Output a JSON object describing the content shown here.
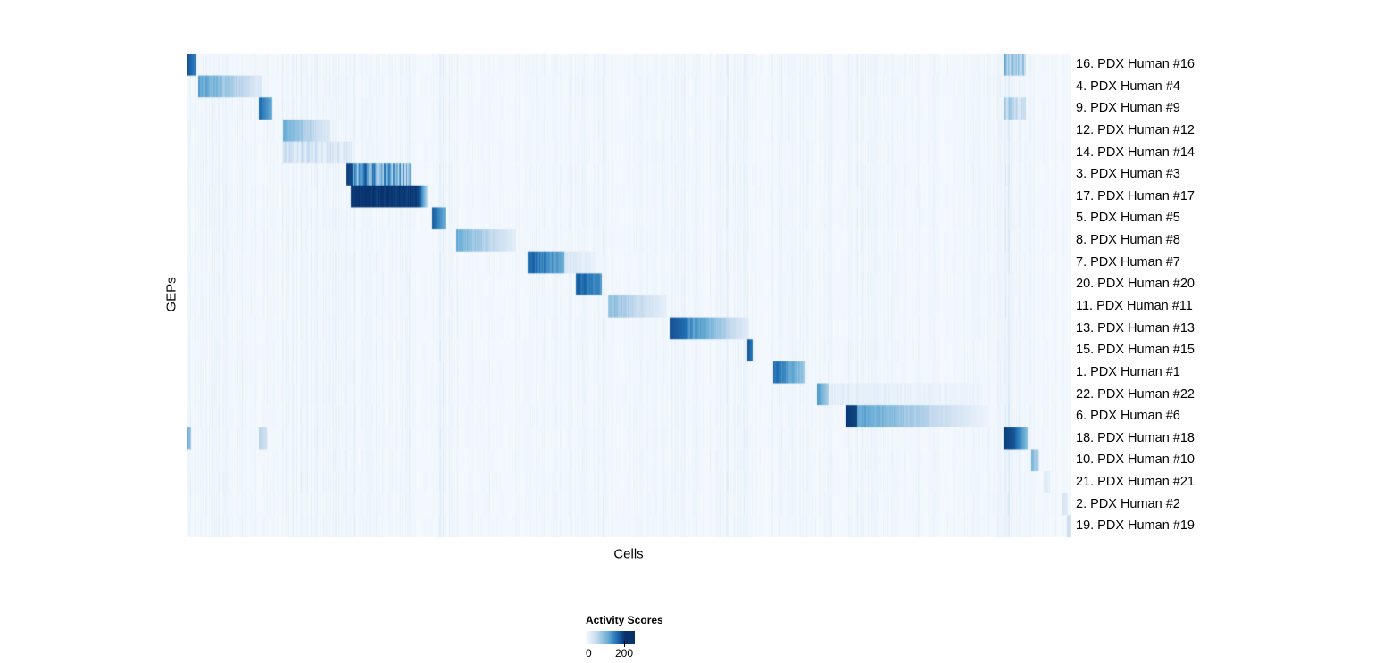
{
  "chart_data": {
    "type": "heatmap",
    "title": "",
    "xlabel": "Cells",
    "ylabel": "GEPs",
    "colormap": {
      "name": "Blues",
      "stops": [
        "#f7fbff",
        "#c6dbef",
        "#6baed6",
        "#2171b5",
        "#08306b"
      ]
    },
    "legend": {
      "title": "Activity Scores",
      "ticks": [
        "0",
        "200"
      ]
    },
    "rows": [
      {
        "label": "16. PDX Human #16",
        "segments": [
          {
            "x0": 0.0,
            "x1": 0.011,
            "v0": 0.88,
            "v1": 0.65
          },
          {
            "x0": 0.924,
            "x1": 0.949,
            "v0": 0.42,
            "v1": 0.28,
            "jitter": 0.9
          }
        ]
      },
      {
        "label": "4. PDX Human #4",
        "segments": [
          {
            "x0": 0.013,
            "x1": 0.085,
            "v0": 0.55,
            "v1": 0.12,
            "jitter": 0.3
          }
        ]
      },
      {
        "label": "9. PDX Human #9",
        "segments": [
          {
            "x0": 0.081,
            "x1": 0.096,
            "v0": 0.8,
            "v1": 0.5
          },
          {
            "x0": 0.924,
            "x1": 0.949,
            "v0": 0.32,
            "v1": 0.2,
            "jitter": 0.9
          }
        ]
      },
      {
        "label": "12. PDX Human #12",
        "segments": [
          {
            "x0": 0.109,
            "x1": 0.162,
            "v0": 0.5,
            "v1": 0.12,
            "jitter": 0.3
          }
        ]
      },
      {
        "label": "14. PDX Human #14",
        "segments": [
          {
            "x0": 0.109,
            "x1": 0.186,
            "v0": 0.2,
            "v1": 0.12,
            "jitter": 1.2
          }
        ]
      },
      {
        "label": "3. PDX Human #3",
        "segments": [
          {
            "x0": 0.18,
            "x1": 0.187,
            "v0": 0.95,
            "v1": 0.9
          },
          {
            "x0": 0.187,
            "x1": 0.253,
            "v0": 0.6,
            "v1": 0.42,
            "jitter": 1.1
          }
        ]
      },
      {
        "label": "17. PDX Human #17",
        "segments": [
          {
            "x0": 0.185,
            "x1": 0.262,
            "v0": 0.98,
            "v1": 0.95,
            "jitter": 0.08
          },
          {
            "x0": 0.262,
            "x1": 0.272,
            "v0": 0.9,
            "v1": 0.25
          }
        ]
      },
      {
        "label": "5. PDX Human #5",
        "segments": [
          {
            "x0": 0.277,
            "x1": 0.292,
            "v0": 0.85,
            "v1": 0.5
          }
        ]
      },
      {
        "label": "8. PDX Human #8",
        "segments": [
          {
            "x0": 0.305,
            "x1": 0.372,
            "v0": 0.5,
            "v1": 0.1,
            "jitter": 0.3
          }
        ]
      },
      {
        "label": "7. PDX Human #7",
        "segments": [
          {
            "x0": 0.385,
            "x1": 0.427,
            "v0": 0.8,
            "v1": 0.5,
            "jitter": 0.25
          },
          {
            "x0": 0.427,
            "x1": 0.463,
            "v0": 0.15,
            "v1": 0.08,
            "jitter": 0.8
          }
        ]
      },
      {
        "label": "20. PDX Human #20",
        "segments": [
          {
            "x0": 0.44,
            "x1": 0.469,
            "v0": 0.85,
            "v1": 0.6,
            "jitter": 0.2
          }
        ]
      },
      {
        "label": "11. PDX Human #11",
        "segments": [
          {
            "x0": 0.476,
            "x1": 0.543,
            "v0": 0.42,
            "v1": 0.08,
            "jitter": 0.3
          }
        ]
      },
      {
        "label": "13. PDX Human #13",
        "segments": [
          {
            "x0": 0.546,
            "x1": 0.565,
            "v0": 0.88,
            "v1": 0.75
          },
          {
            "x0": 0.565,
            "x1": 0.636,
            "v0": 0.65,
            "v1": 0.1,
            "jitter": 0.25
          }
        ]
      },
      {
        "label": "15. PDX Human #15",
        "segments": [
          {
            "x0": 0.634,
            "x1": 0.64,
            "v0": 0.88,
            "v1": 0.7
          }
        ]
      },
      {
        "label": "1. PDX Human #1",
        "segments": [
          {
            "x0": 0.663,
            "x1": 0.699,
            "v0": 0.78,
            "v1": 0.35,
            "jitter": 0.2
          }
        ]
      },
      {
        "label": "22. PDX Human #22",
        "segments": [
          {
            "x0": 0.713,
            "x1": 0.726,
            "v0": 0.6,
            "v1": 0.3
          },
          {
            "x0": 0.726,
            "x1": 0.9,
            "v0": 0.1,
            "v1": 0.05,
            "jitter": 0.8
          }
        ]
      },
      {
        "label": "6. PDX Human #6",
        "segments": [
          {
            "x0": 0.745,
            "x1": 0.758,
            "v0": 0.97,
            "v1": 0.92
          },
          {
            "x0": 0.758,
            "x1": 0.91,
            "v0": 0.55,
            "v1": 0.04,
            "jitter": 0.2
          }
        ]
      },
      {
        "label": "18. PDX Human #18",
        "segments": [
          {
            "x0": 0.0,
            "x1": 0.005,
            "v0": 0.5,
            "v1": 0.35
          },
          {
            "x0": 0.081,
            "x1": 0.09,
            "v0": 0.3,
            "v1": 0.2
          },
          {
            "x0": 0.924,
            "x1": 0.937,
            "v0": 0.95,
            "v1": 0.85
          },
          {
            "x0": 0.937,
            "x1": 0.951,
            "v0": 0.8,
            "v1": 0.4
          }
        ]
      },
      {
        "label": "10. PDX Human #10",
        "segments": [
          {
            "x0": 0.955,
            "x1": 0.964,
            "v0": 0.4,
            "v1": 0.25,
            "jitter": 0.5
          }
        ]
      },
      {
        "label": "21. PDX Human #21",
        "segments": [
          {
            "x0": 0.969,
            "x1": 0.977,
            "v0": 0.15,
            "v1": 0.08,
            "jitter": 0.6
          }
        ]
      },
      {
        "label": "2. PDX Human #2",
        "segments": [
          {
            "x0": 0.99,
            "x1": 0.996,
            "v0": 0.18,
            "v1": 0.12
          }
        ]
      },
      {
        "label": "19. PDX Human #19",
        "segments": [
          {
            "x0": 0.995,
            "x1": 1.001,
            "v0": 0.25,
            "v1": 0.15
          }
        ]
      }
    ],
    "stripe_regions": [
      {
        "x0": 0.0,
        "x1": 0.096,
        "v": 0.05
      },
      {
        "x0": 0.109,
        "x1": 0.19,
        "v": 0.06
      },
      {
        "x0": 0.187,
        "x1": 0.253,
        "v": 0.04
      },
      {
        "x0": 0.277,
        "x1": 0.3,
        "v": 0.05
      },
      {
        "x0": 0.385,
        "x1": 0.475,
        "v": 0.05
      },
      {
        "x0": 0.476,
        "x1": 0.545,
        "v": 0.03
      },
      {
        "x0": 0.546,
        "x1": 0.645,
        "v": 0.05
      },
      {
        "x0": 0.663,
        "x1": 0.73,
        "v": 0.05
      },
      {
        "x0": 0.745,
        "x1": 0.955,
        "v": 0.035
      },
      {
        "x0": 0.924,
        "x1": 0.949,
        "v": 0.1
      }
    ]
  }
}
